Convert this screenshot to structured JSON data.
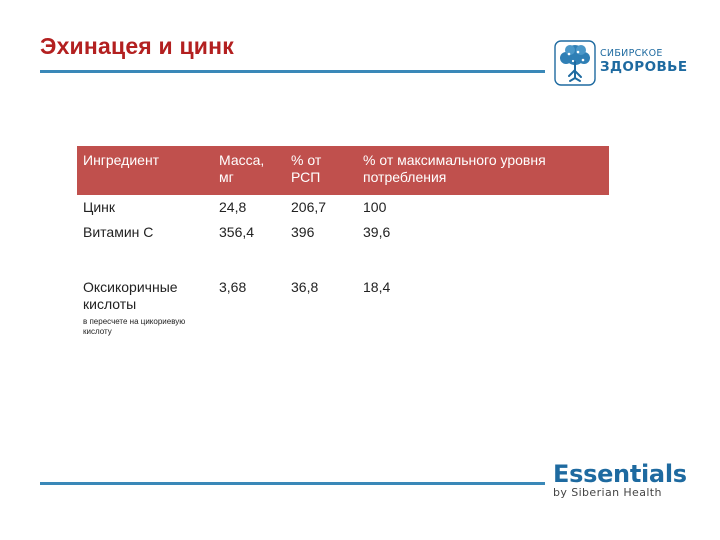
{
  "slide": {
    "title": "Эхинацея и цинк"
  },
  "logo_top": {
    "line1": "СИБИРСКОЕ",
    "line2": "ЗДОРОВЬЕ",
    "icon": "tree-icon",
    "color": "#1e6aa0"
  },
  "table": {
    "headers": [
      "Ингредиент",
      "Масса, мг",
      "% от РСП",
      "% от максимального уровня потребления"
    ],
    "rows": [
      {
        "name": "Цинк",
        "mass": "24,8",
        "rsp": "206,7",
        "max": "100"
      },
      {
        "name": "Витамин С",
        "mass": "356,4",
        "rsp": "396",
        "max": "39,6"
      },
      {
        "name": "Оксикоричные кислоты",
        "note": "в пересчете на цикориевую кислоту",
        "mass": "3,68",
        "rsp": "36,8",
        "max": "18,4"
      }
    ],
    "header_color": "#c0504d"
  },
  "logo_bottom": {
    "word": "Essentials",
    "tagline": "by Siberian Health"
  },
  "colors": {
    "title": "#b32020",
    "rule": "#3a88b8"
  }
}
